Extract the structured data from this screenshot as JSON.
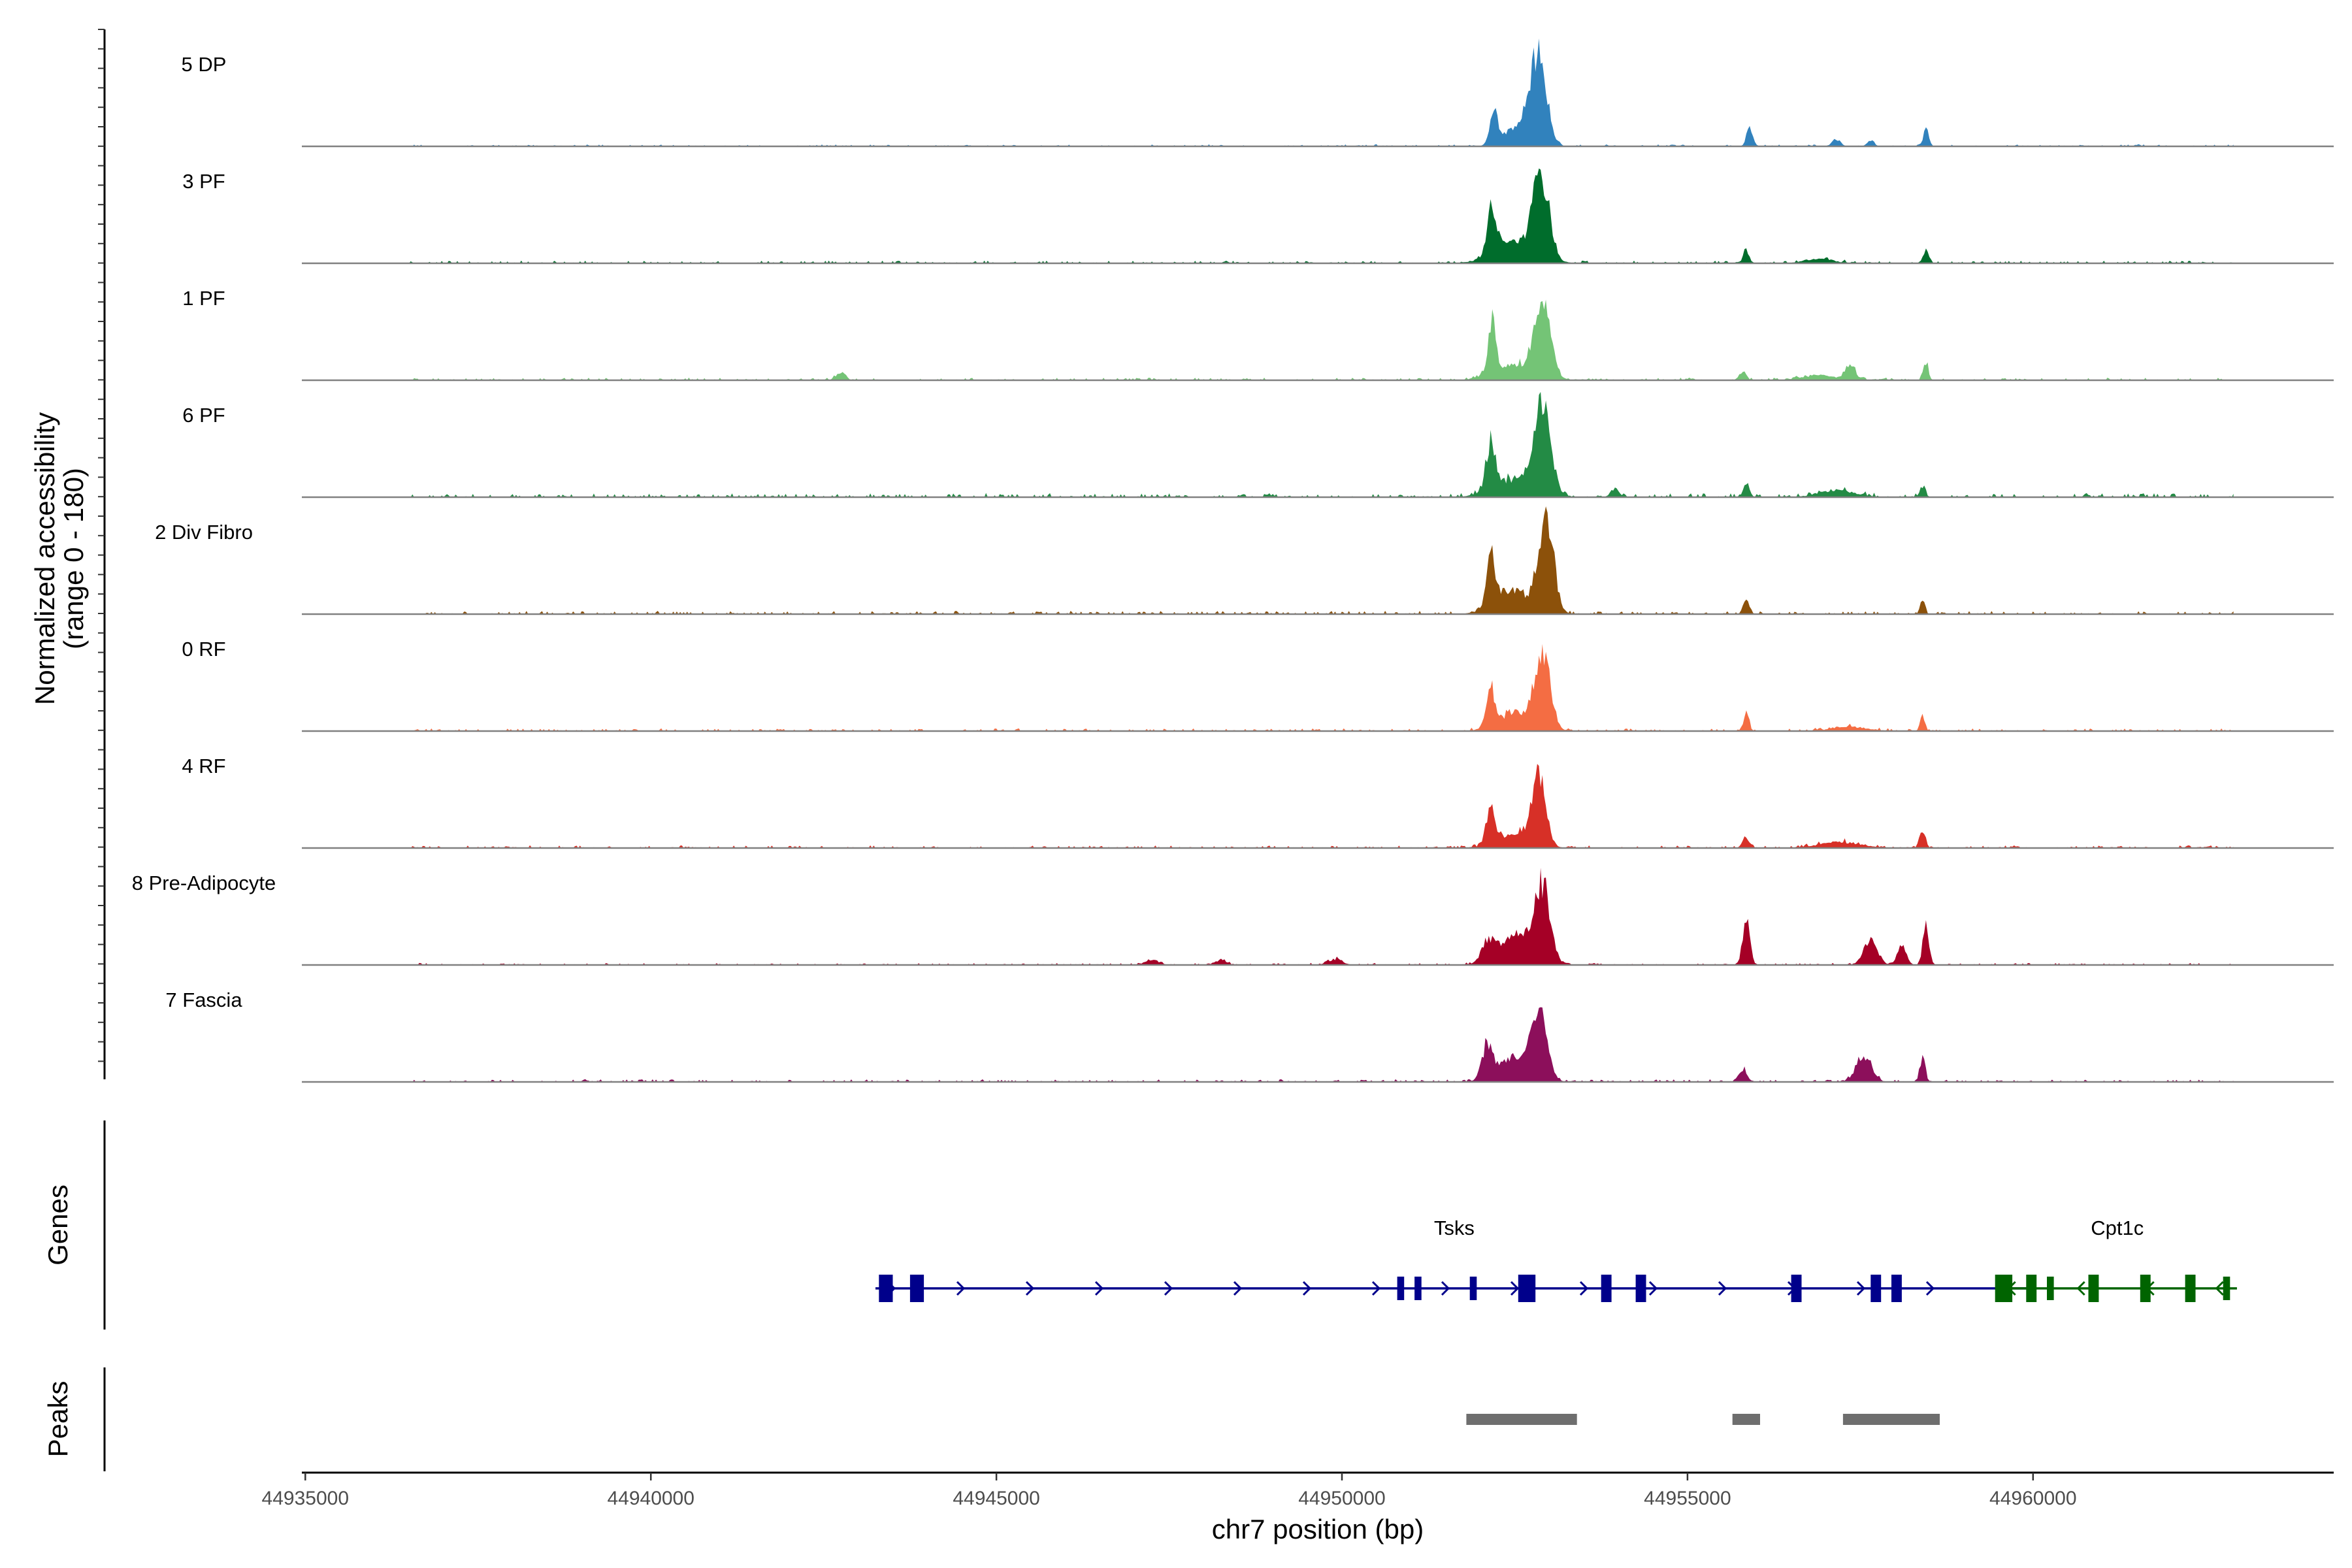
{
  "chart_data": {
    "type": "area",
    "chromosome": "chr7",
    "xlabel": "chr7 position (bp)",
    "xlim": [
      44934950,
      44964350
    ],
    "x_ticks": [
      44935000,
      44940000,
      44945000,
      44950000,
      44955000,
      44960000
    ],
    "x_tick_labels": [
      "44935000",
      "44940000",
      "44945000",
      "44950000",
      "44955000",
      "44960000"
    ],
    "ylabel_line1": "Normalized accessibility",
    "ylabel_line2": "(range 0 - 180)",
    "ylim": [
      0,
      180
    ],
    "coverage_extent": [
      44936500,
      44962900
    ],
    "tracks": [
      {
        "name": "5 DP",
        "color": "#3182bd",
        "peaks": [
          [
            44952200,
            55,
            60
          ],
          [
            44952850,
            145,
            110
          ],
          [
            44952600,
            40,
            200
          ],
          [
            44955900,
            30,
            45
          ],
          [
            44957150,
            12,
            60
          ],
          [
            44957650,
            10,
            50
          ],
          [
            44958450,
            28,
            40
          ]
        ],
        "noise": 3
      },
      {
        "name": "3 PF",
        "color": "#006d2c",
        "peaks": [
          [
            44952170,
            80,
            65
          ],
          [
            44952880,
            138,
            115
          ],
          [
            44952500,
            35,
            300
          ],
          [
            44955850,
            22,
            40
          ],
          [
            44956900,
            8,
            200
          ],
          [
            44958450,
            22,
            40
          ]
        ],
        "noise": 4
      },
      {
        "name": "1 PF",
        "color": "#74c476",
        "peaks": [
          [
            44942750,
            14,
            60
          ],
          [
            44952170,
            90,
            55
          ],
          [
            44952900,
            130,
            115
          ],
          [
            44952500,
            25,
            300
          ],
          [
            44955800,
            14,
            50
          ],
          [
            44956900,
            8,
            250
          ],
          [
            44957350,
            25,
            70
          ],
          [
            44958450,
            28,
            35
          ]
        ],
        "noise": 4
      },
      {
        "name": "6 PF",
        "color": "#238b45",
        "peaks": [
          [
            44952150,
            80,
            65
          ],
          [
            44952900,
            140,
            120
          ],
          [
            44952500,
            30,
            300
          ],
          [
            44953950,
            15,
            60
          ],
          [
            44955850,
            20,
            45
          ],
          [
            44957150,
            12,
            250
          ],
          [
            44958400,
            18,
            40
          ]
        ],
        "noise": 6
      },
      {
        "name": "2 Div Fibro",
        "color": "#8c510a",
        "peaks": [
          [
            44952150,
            82,
            60
          ],
          [
            44952950,
            160,
            110
          ],
          [
            44952450,
            40,
            250
          ],
          [
            44955850,
            22,
            45
          ],
          [
            44958400,
            22,
            35
          ]
        ],
        "noise": 5
      },
      {
        "name": "0 RF",
        "color": "#f46d43",
        "peaks": [
          [
            44952150,
            65,
            60
          ],
          [
            44952900,
            125,
            110
          ],
          [
            44952500,
            30,
            250
          ],
          [
            44955850,
            30,
            40
          ],
          [
            44957350,
            7,
            250
          ],
          [
            44958400,
            25,
            35
          ]
        ],
        "noise": 4
      },
      {
        "name": "4 RF",
        "color": "#d73027",
        "peaks": [
          [
            44952150,
            65,
            60
          ],
          [
            44952850,
            115,
            100
          ],
          [
            44952500,
            25,
            250
          ],
          [
            44955850,
            18,
            50
          ],
          [
            44957200,
            10,
            300
          ],
          [
            44958400,
            30,
            40
          ]
        ],
        "noise": 4
      },
      {
        "name": "8 Pre-Adipocyte",
        "color": "#a50026",
        "peaks": [
          [
            44952100,
            30,
            80
          ],
          [
            44952900,
            125,
            110
          ],
          [
            44952500,
            50,
            250
          ],
          [
            44955850,
            80,
            50
          ],
          [
            44957650,
            40,
            100
          ],
          [
            44958100,
            35,
            60
          ],
          [
            44958450,
            65,
            45
          ],
          [
            44947250,
            8,
            100
          ],
          [
            44948250,
            8,
            80
          ],
          [
            44949900,
            10,
            100
          ]
        ],
        "noise": 3
      },
      {
        "name": "7 Fascia",
        "color": "#8c0f5b",
        "peaks": [
          [
            44952100,
            55,
            70
          ],
          [
            44952850,
            110,
            110
          ],
          [
            44952500,
            40,
            250
          ],
          [
            44955800,
            20,
            60
          ],
          [
            44957550,
            45,
            110
          ],
          [
            44958400,
            40,
            40
          ]
        ],
        "noise": 4
      }
    ],
    "genes": [
      {
        "name": "Tsks",
        "strand": "+",
        "start": 44943250,
        "end": 44960000,
        "exons": [
          [
            44943300,
            44943500
          ],
          [
            44943750,
            44943950
          ],
          [
            44950800,
            44950900
          ],
          [
            44951050,
            44951150
          ],
          [
            44951850,
            44951950
          ],
          [
            44952550,
            44952800
          ],
          [
            44953750,
            44953900
          ],
          [
            44954250,
            44954400
          ],
          [
            44956500,
            44956650
          ],
          [
            44957650,
            44957800
          ],
          [
            44957950,
            44958100
          ]
        ]
      },
      {
        "name": "Cpt1c",
        "strand": "-",
        "start": 44959450,
        "end": 44962950,
        "exons": [
          [
            44959450,
            44959700
          ],
          [
            44959900,
            44960050
          ],
          [
            44960200,
            44960300
          ],
          [
            44960800,
            44960950
          ],
          [
            44961550,
            44961700
          ],
          [
            44962200,
            44962350
          ],
          [
            44962750,
            44962850
          ]
        ]
      }
    ],
    "peak_regions": [
      [
        44951800,
        44953400
      ],
      [
        44955650,
        44956050
      ],
      [
        44957250,
        44958650
      ]
    ],
    "section_labels": {
      "genes": "Genes",
      "peaks": "Peaks"
    }
  }
}
